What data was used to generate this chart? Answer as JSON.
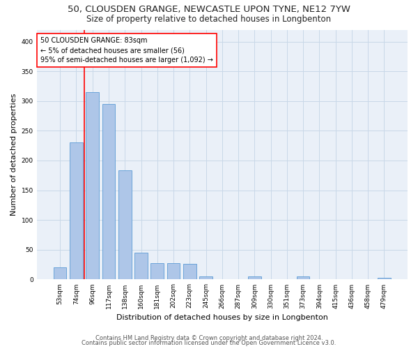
{
  "title": "50, CLOUSDEN GRANGE, NEWCASTLE UPON TYNE, NE12 7YW",
  "subtitle": "Size of property relative to detached houses in Longbenton",
  "xlabel": "Distribution of detached houses by size in Longbenton",
  "ylabel": "Number of detached properties",
  "categories": [
    "53sqm",
    "74sqm",
    "96sqm",
    "117sqm",
    "138sqm",
    "160sqm",
    "181sqm",
    "202sqm",
    "223sqm",
    "245sqm",
    "266sqm",
    "287sqm",
    "309sqm",
    "330sqm",
    "351sqm",
    "373sqm",
    "394sqm",
    "415sqm",
    "436sqm",
    "458sqm",
    "479sqm"
  ],
  "values": [
    20,
    230,
    315,
    295,
    183,
    45,
    27,
    27,
    26,
    5,
    0,
    0,
    5,
    0,
    0,
    5,
    0,
    0,
    0,
    0,
    3
  ],
  "bar_color": "#aec6e8",
  "bar_edge_color": "#5b9bd5",
  "grid_color": "#c8d8e8",
  "background_color": "#eaf0f8",
  "property_line_x": 1.5,
  "annotation_text": "50 CLOUSDEN GRANGE: 83sqm\n← 5% of detached houses are smaller (56)\n95% of semi-detached houses are larger (1,092) →",
  "footer_line1": "Contains HM Land Registry data © Crown copyright and database right 2024.",
  "footer_line2": "Contains public sector information licensed under the Open Government Licence v3.0.",
  "ylim": [
    0,
    420
  ],
  "yticks": [
    0,
    50,
    100,
    150,
    200,
    250,
    300,
    350,
    400
  ],
  "title_fontsize": 9.5,
  "subtitle_fontsize": 8.5,
  "axis_label_fontsize": 8,
  "tick_fontsize": 6.5,
  "annotation_fontsize": 7,
  "footer_fontsize": 6
}
